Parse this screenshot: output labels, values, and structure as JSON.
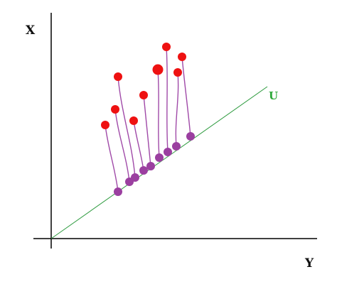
{
  "labels": {
    "vertical_axis": "X",
    "horizontal_axis": "Y",
    "projection_line": "U"
  },
  "colors": {
    "axis": "#000000",
    "projection_line": "#2e9b3f",
    "label_u": "#2ea83a",
    "original_points": "#ee1111",
    "projected_points": "#9b3fa0",
    "connectors": "#a04aa8"
  },
  "points": [
    {
      "original": [
        3.8,
        8.0
      ],
      "projected": [
        4.7,
        3.3
      ]
    },
    {
      "original": [
        4.5,
        9.1
      ],
      "projected": [
        5.5,
        4.0
      ]
    },
    {
      "original": [
        4.7,
        11.4
      ],
      "projected": [
        5.9,
        4.3
      ]
    },
    {
      "original": [
        5.8,
        8.3
      ],
      "projected": [
        6.5,
        4.8
      ]
    },
    {
      "original": [
        6.5,
        10.1
      ],
      "projected": [
        7.0,
        5.1
      ]
    },
    {
      "original": [
        7.5,
        11.9
      ],
      "projected": [
        7.6,
        5.7
      ]
    },
    {
      "original": [
        8.1,
        13.5
      ],
      "projected": [
        8.2,
        6.1
      ]
    },
    {
      "original": [
        8.9,
        11.7
      ],
      "projected": [
        8.8,
        6.5
      ]
    },
    {
      "original": [
        9.2,
        12.8
      ],
      "projected": [
        9.8,
        7.2
      ]
    }
  ]
}
